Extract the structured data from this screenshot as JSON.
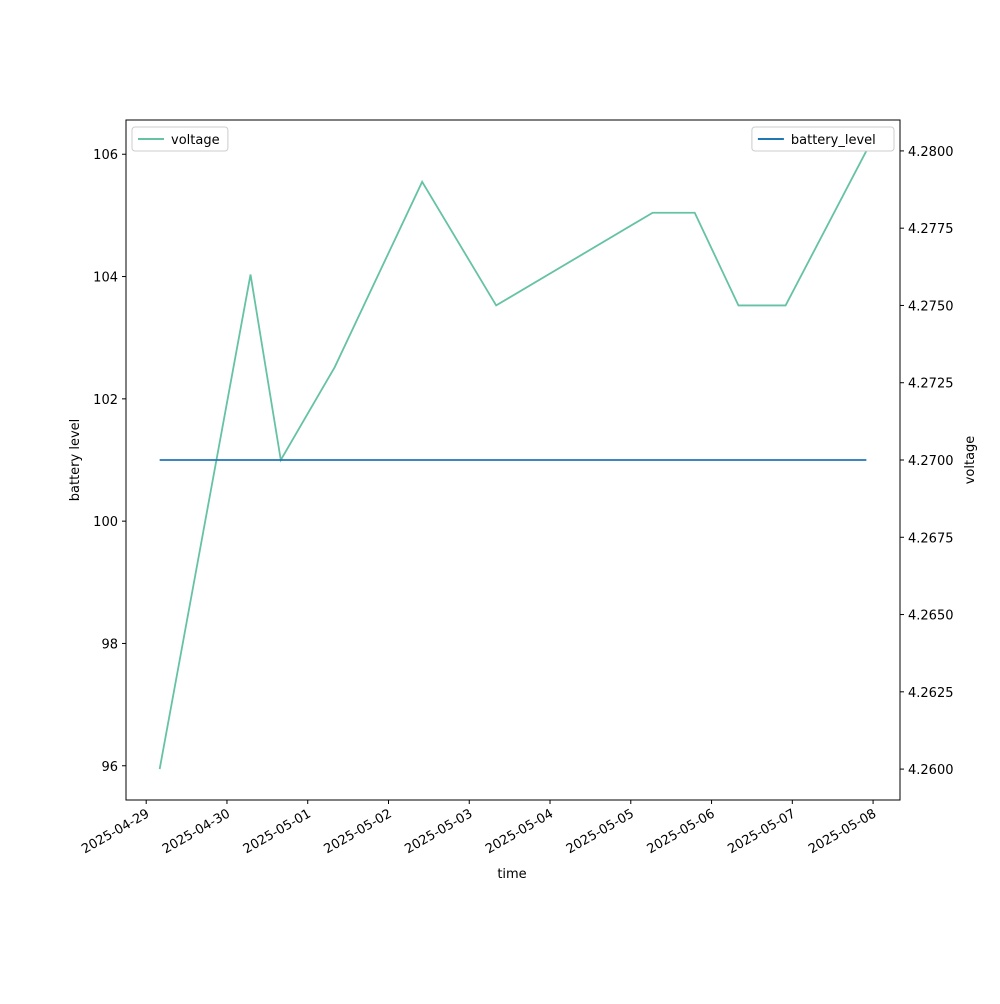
{
  "chart_data": {
    "type": "line",
    "xlabel": "time",
    "ylabel": "battery level",
    "y2label": "voltage",
    "x": [
      "2025-04-29T04:00",
      "2025-04-30T07:00",
      "2025-04-30T16:00",
      "2025-05-01T08:00",
      "2025-05-02T10:00",
      "2025-05-03T08:00",
      "2025-05-05T06:30",
      "2025-05-05T19:00",
      "2025-05-06T08:00",
      "2025-05-06T22:00",
      "2025-05-07T22:00"
    ],
    "series": [
      {
        "name": "voltage",
        "color": "#66c2a5",
        "axis": "y2",
        "legend": "upper left",
        "values": [
          4.26,
          4.276,
          4.27,
          4.273,
          4.279,
          4.275,
          4.278,
          4.278,
          4.275,
          4.275,
          4.28
        ]
      },
      {
        "name": "battery_level",
        "color": "#1f77b4",
        "legend": "upper right",
        "values": [
          101,
          101,
          101,
          101,
          101,
          101,
          101,
          101,
          101,
          101,
          101
        ]
      }
    ],
    "xlim": [
      "2025-04-28T18:00",
      "2025-05-08T08:00"
    ],
    "xticks": [
      "2025-04-29",
      "2025-04-30",
      "2025-05-01",
      "2025-05-02",
      "2025-05-03",
      "2025-05-04",
      "2025-05-05",
      "2025-05-06",
      "2025-05-07",
      "2025-05-08"
    ],
    "ylim": [
      95.44,
      106.56
    ],
    "yticks": [
      96,
      98,
      100,
      102,
      104,
      106
    ],
    "y2lim": [
      4.259,
      4.281
    ],
    "y2ticks": [
      {
        "value": 4.26,
        "label": "4.2600"
      },
      4.2625,
      {
        "value": 4.265,
        "label": "4.2650"
      },
      4.2675,
      {
        "value": 4.27,
        "label": "4.2700"
      },
      4.2725,
      {
        "value": 4.275,
        "label": "4.2750"
      },
      4.2775,
      {
        "value": 4.28,
        "label": "4.2800"
      }
    ]
  }
}
